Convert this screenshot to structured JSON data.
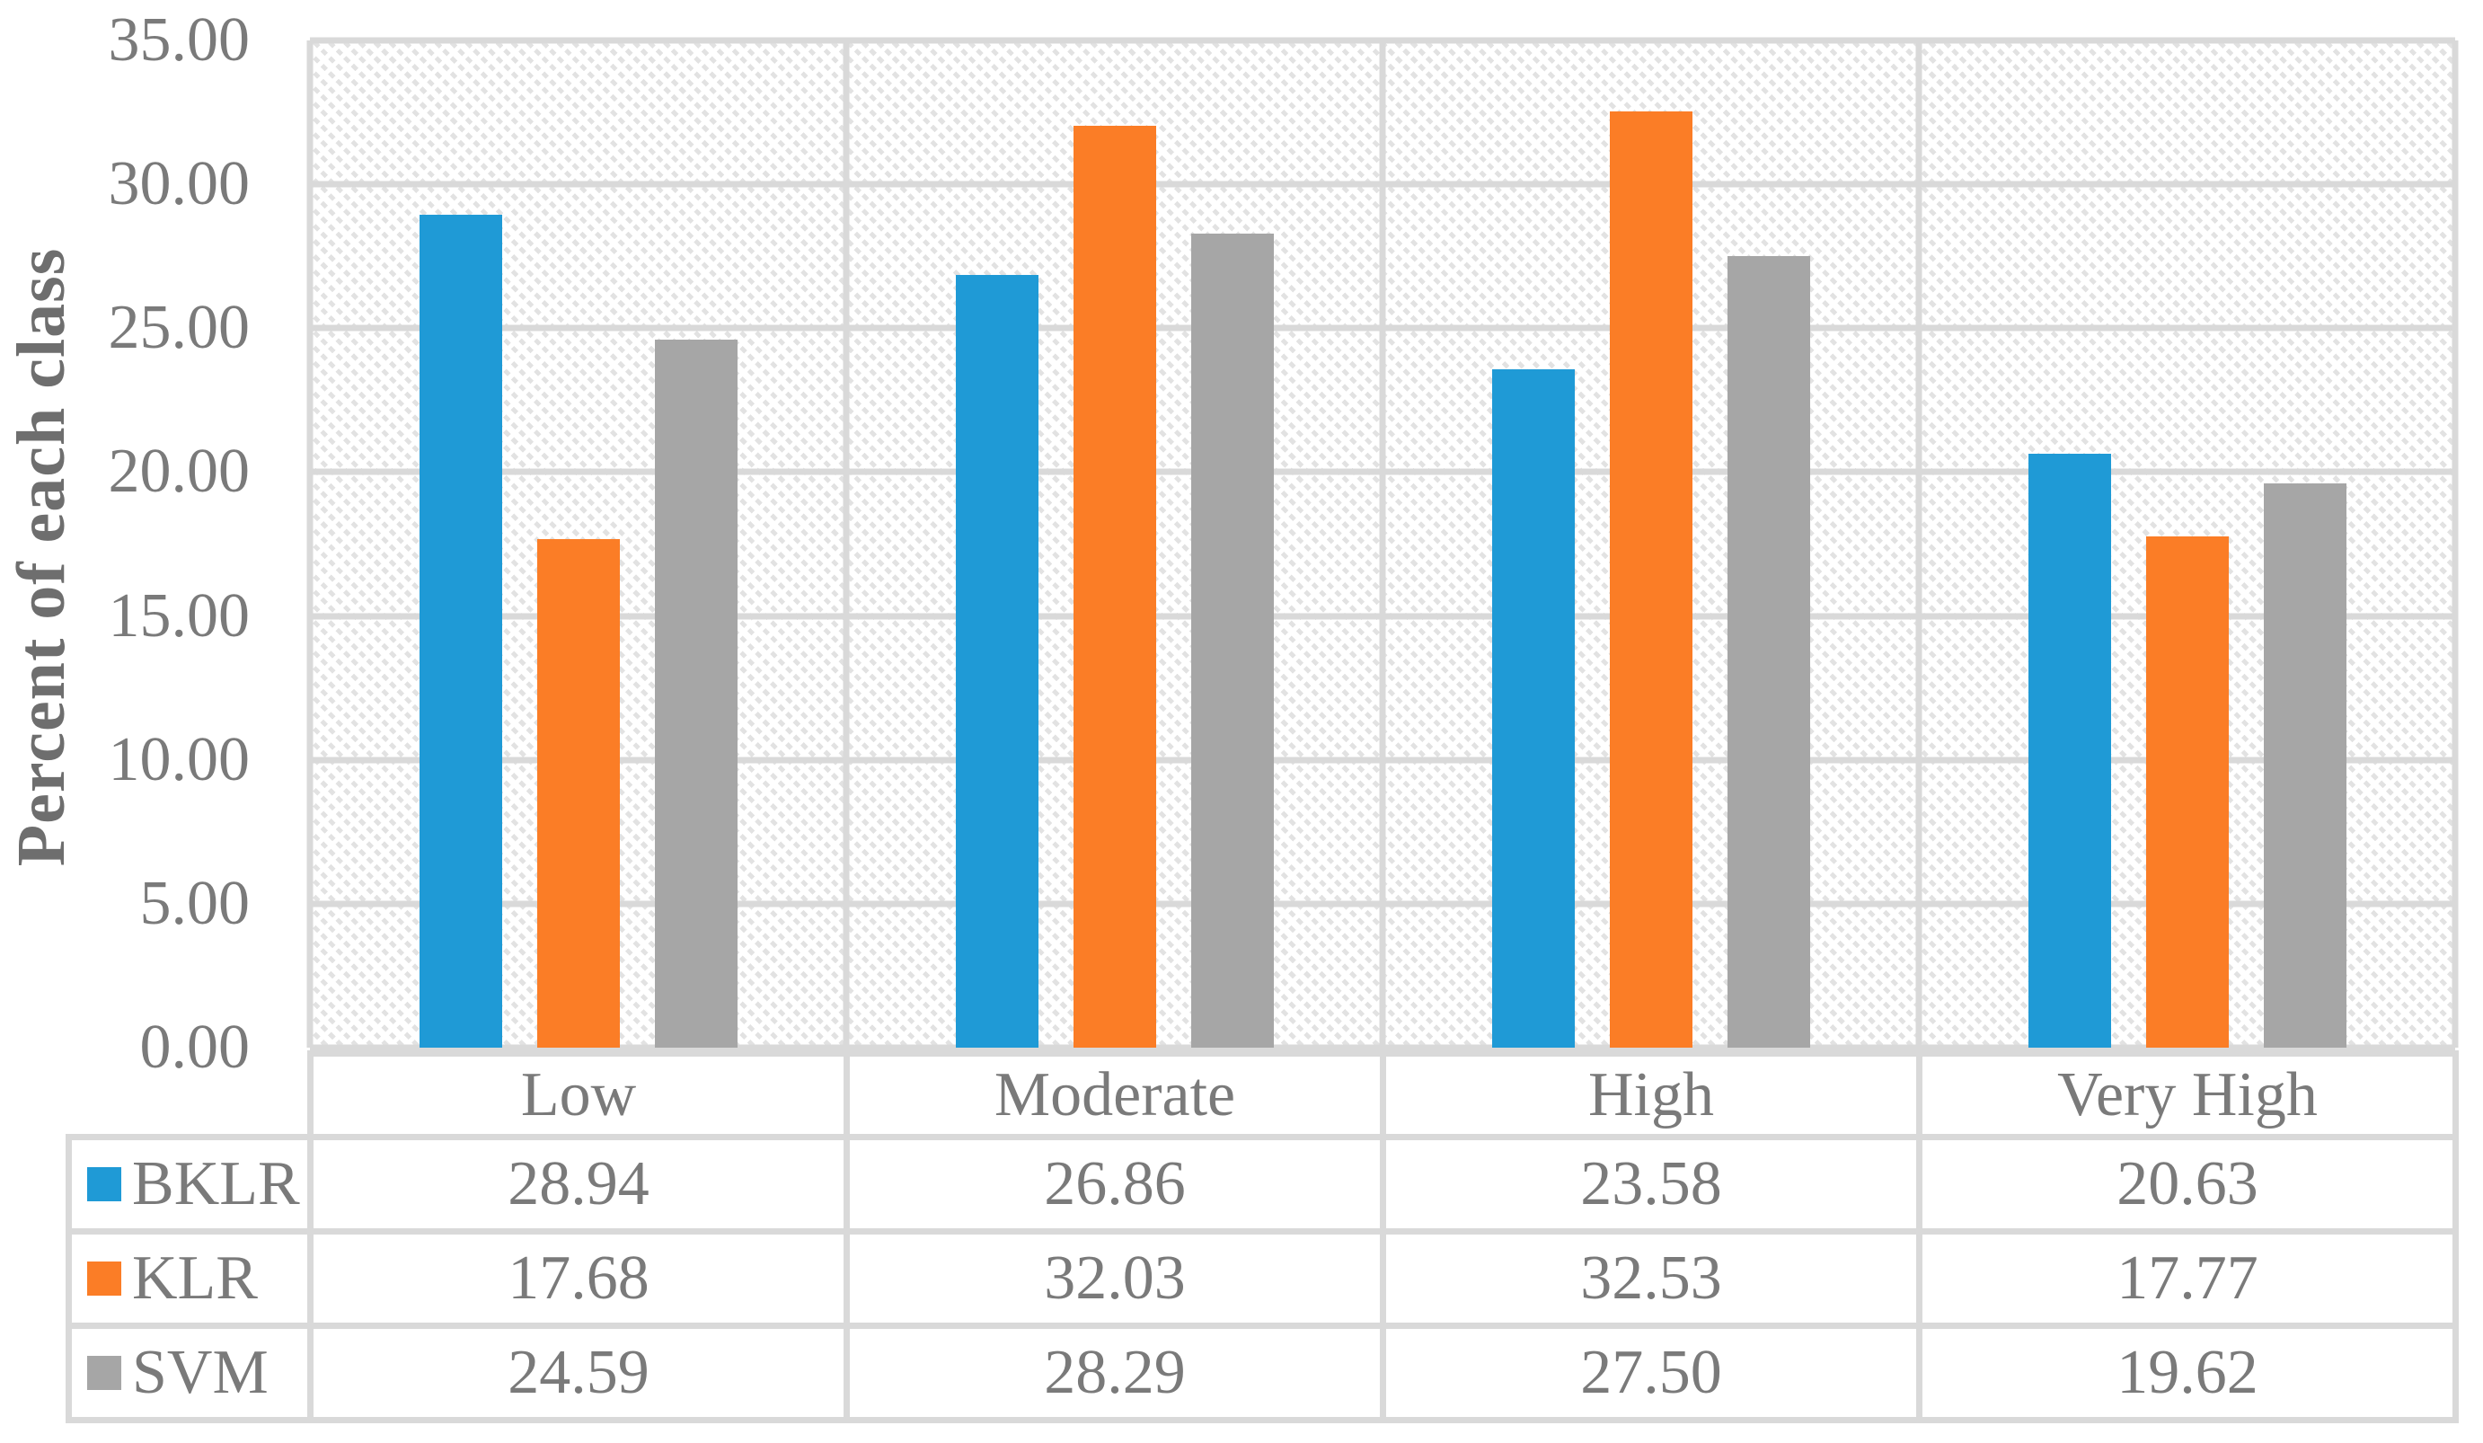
{
  "chart_data": {
    "type": "bar",
    "title": "",
    "ylabel": "Percent of each class",
    "xlabel": "",
    "categories": [
      "Low",
      "Moderate",
      "High",
      "Very High"
    ],
    "series": [
      {
        "name": "BKLR",
        "color": "#1f9ad6",
        "values": [
          28.94,
          26.86,
          23.58,
          20.63
        ]
      },
      {
        "name": "KLR",
        "color": "#fb7d26",
        "values": [
          17.68,
          32.03,
          32.53,
          17.77
        ]
      },
      {
        "name": "SVM",
        "color": "#a6a6a6",
        "values": [
          24.59,
          28.29,
          27.5,
          19.62
        ]
      }
    ],
    "ylim": [
      0,
      35
    ],
    "ytick_step": 5,
    "ytick_labels": [
      "35.00",
      "30.00",
      "25.00",
      "20.00",
      "15.00",
      "10.00",
      "5.00",
      "0.00"
    ],
    "value_decimals": 2,
    "grid": true,
    "vertical_gridlines": true,
    "plot_background": "diagonal-hatch",
    "legend_position": "table-left"
  },
  "palette": {
    "gridline": "#d9d9d9",
    "hatch": "#e2e2e2",
    "tick_text": "#7a7a7a",
    "table_text": "#7a7a7a",
    "axis_title_text": "#6e6e6e",
    "background": "#ffffff"
  }
}
